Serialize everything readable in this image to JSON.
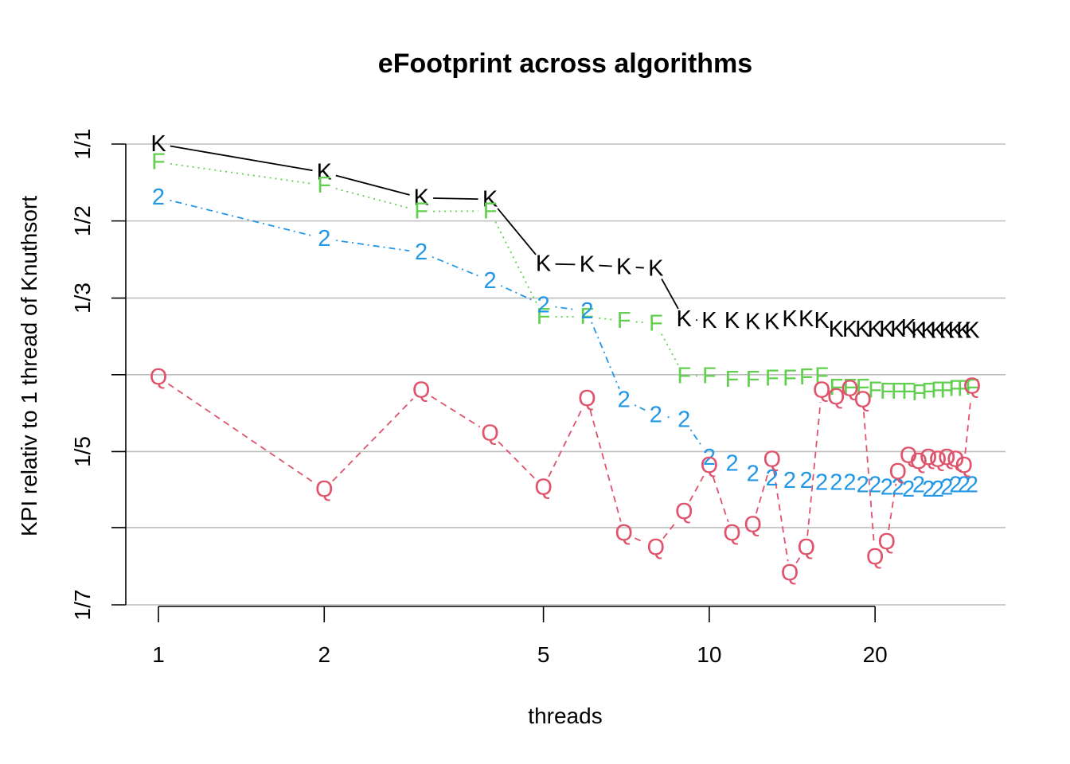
{
  "chart_data": {
    "type": "line",
    "title": "eFootprint across algorithms",
    "xlabel": "threads",
    "ylabel": "KPI relativ to 1 thread of Knuthsort",
    "x_scale": "log",
    "y_scale": "reciprocal",
    "xlim": [
      1,
      30
    ],
    "ylim": [
      0.143,
      1.0
    ],
    "x_ticks": [
      1,
      2,
      5,
      10,
      20
    ],
    "x_tick_labels": [
      "1",
      "2",
      "5",
      "10",
      "20"
    ],
    "y_gridlines": [
      1.0,
      0.5,
      0.333,
      0.25,
      0.2,
      0.167,
      0.143
    ],
    "y_ticks": [
      1.0,
      0.5,
      0.333,
      0.2,
      0.143
    ],
    "y_tick_labels": [
      "1/1",
      "1/2",
      "1/3",
      "1/5",
      "1/7"
    ],
    "grid": true,
    "x": [
      1,
      2,
      3,
      4,
      5,
      6,
      7,
      8,
      9,
      10,
      11,
      12,
      13,
      14,
      15,
      16,
      17,
      18,
      19,
      20,
      21,
      22,
      23,
      24,
      25,
      26,
      27,
      28,
      29,
      30
    ],
    "series": [
      {
        "marker": "K",
        "color": "#000000",
        "line_style": "solid",
        "values": [
          1.0,
          0.73,
          0.588,
          0.582,
          0.391,
          0.389,
          0.385,
          0.382,
          0.305,
          0.303,
          0.303,
          0.302,
          0.302,
          0.305,
          0.305,
          0.303,
          0.293,
          0.293,
          0.293,
          0.293,
          0.293,
          0.293,
          0.295,
          0.292,
          0.292,
          0.292,
          0.292,
          0.292,
          0.292,
          0.292
        ]
      },
      {
        "marker": "F",
        "color": "#61d04f",
        "line_style": "dotted",
        "values": [
          0.81,
          0.65,
          0.533,
          0.534,
          0.308,
          0.308,
          0.303,
          0.3,
          0.249,
          0.249,
          0.246,
          0.246,
          0.247,
          0.247,
          0.248,
          0.249,
          0.24,
          0.24,
          0.24,
          0.238,
          0.237,
          0.237,
          0.237,
          0.236,
          0.237,
          0.238,
          0.238,
          0.239,
          0.239,
          0.24
        ]
      },
      {
        "marker": "2",
        "color": "#2297e6",
        "line_style": "dotdash",
        "values": [
          0.59,
          0.448,
          0.415,
          0.36,
          0.323,
          0.315,
          0.231,
          0.221,
          0.218,
          0.197,
          0.194,
          0.189,
          0.187,
          0.186,
          0.186,
          0.185,
          0.185,
          0.185,
          0.184,
          0.184,
          0.183,
          0.183,
          0.182,
          0.184,
          0.182,
          0.182,
          0.183,
          0.184,
          0.184,
          0.184
        ]
      },
      {
        "marker": "Q",
        "color": "#df536b",
        "line_style": "dashed",
        "values": [
          0.248,
          0.182,
          0.238,
          0.21,
          0.183,
          0.232,
          0.165,
          0.16,
          0.173,
          0.193,
          0.165,
          0.168,
          0.196,
          0.152,
          0.16,
          0.238,
          0.233,
          0.239,
          0.231,
          0.157,
          0.162,
          0.19,
          0.198,
          0.195,
          0.197,
          0.196,
          0.197,
          0.196,
          0.193,
          0.241
        ]
      }
    ]
  }
}
